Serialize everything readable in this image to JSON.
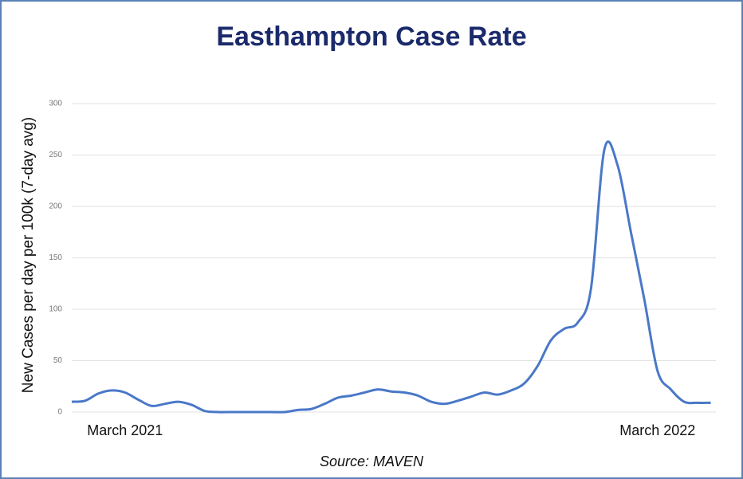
{
  "chart_data": {
    "type": "line",
    "title": "Easthampton Case Rate",
    "y_label": "New Cases per day per 100k (7-day avg)",
    "source": "Source: MAVEN",
    "categories": [
      null,
      null,
      null,
      null,
      "March 2021",
      null,
      null,
      null,
      null,
      null,
      null,
      null,
      null,
      null,
      null,
      null,
      null,
      null,
      null,
      null,
      null,
      null,
      null,
      null,
      null,
      null,
      null,
      null,
      null,
      null,
      null,
      null,
      null,
      null,
      null,
      null,
      null,
      null,
      null,
      null,
      null,
      null,
      null,
      null,
      "March 2022",
      null,
      null,
      null,
      null
    ],
    "series": [
      {
        "name": "Case Rate",
        "color": "#4a78c8",
        "values": [
          10,
          11,
          18,
          21,
          19,
          12,
          6,
          8,
          10,
          7,
          1,
          0,
          0,
          0,
          0,
          0,
          0,
          2,
          3,
          8,
          14,
          16,
          19,
          22,
          20,
          19,
          16,
          10,
          8,
          11,
          15,
          19,
          17,
          21,
          28,
          45,
          70,
          81,
          87,
          120,
          255,
          240,
          175,
          110,
          40,
          22,
          10,
          9,
          9
        ]
      }
    ],
    "ylim": [
      0,
      300
    ],
    "yticks": [
      0,
      50,
      100,
      150,
      200,
      250,
      300
    ],
    "grid": true
  }
}
